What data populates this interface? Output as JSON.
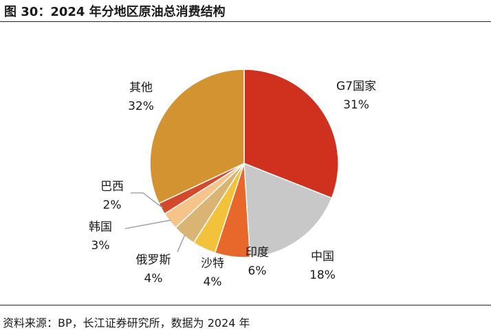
{
  "header": {
    "title": "图 30：2024 年分地区原油总消费结构"
  },
  "footer": {
    "source": "资料来源：BP，长江证券研究所，数据为 2024 年"
  },
  "chart_data": {
    "type": "pie",
    "title": "图 30：2024 年分地区原油总消费结构",
    "start_angle_deg": 0,
    "direction": "clockwise",
    "slices": [
      {
        "label": "G7国家",
        "value": 31,
        "value_label": "31%",
        "color": "#d0311e"
      },
      {
        "label": "中国",
        "value": 18,
        "value_label": "18%",
        "color": "#c8c8c8"
      },
      {
        "label": "印度",
        "value": 6,
        "value_label": "6%",
        "color": "#e8672a"
      },
      {
        "label": "沙特",
        "value": 4,
        "value_label": "4%",
        "color": "#f2c23a"
      },
      {
        "label": "俄罗斯",
        "value": 4,
        "value_label": "4%",
        "color": "#d9b473"
      },
      {
        "label": "韩国",
        "value": 3,
        "value_label": "3%",
        "color": "#f6c48a"
      },
      {
        "label": "巴西",
        "value": 2,
        "value_label": "2%",
        "color": "#d4492b"
      },
      {
        "label": "其他",
        "value": 32,
        "value_label": "32%",
        "color": "#d49331"
      }
    ]
  }
}
